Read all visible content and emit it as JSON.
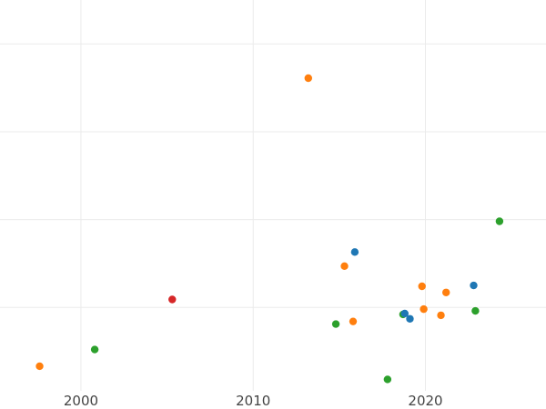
{
  "chart_data": {
    "type": "scatter",
    "title": "",
    "xlabel": "",
    "ylabel": "",
    "x_ticks": [
      2000,
      2010,
      2020
    ],
    "x_tick_labels": [
      "2000",
      "2010",
      "2020"
    ],
    "xlim": [
      1995.3,
      2027.0
    ],
    "y_gridlines": [
      1,
      2,
      3,
      4
    ],
    "ylim": [
      0.05,
      4.5
    ],
    "grid": true,
    "colors": {
      "blue": "#1f77b4",
      "orange": "#ff7f0e",
      "green": "#2ca02c",
      "red": "#d62728"
    },
    "points": [
      {
        "x": 1997.6,
        "y": 0.33,
        "color": "orange"
      },
      {
        "x": 2000.8,
        "y": 0.52,
        "color": "green"
      },
      {
        "x": 2005.3,
        "y": 1.09,
        "color": "red"
      },
      {
        "x": 2013.2,
        "y": 3.61,
        "color": "orange"
      },
      {
        "x": 2014.8,
        "y": 0.81,
        "color": "green"
      },
      {
        "x": 2015.3,
        "y": 1.47,
        "color": "orange"
      },
      {
        "x": 2015.8,
        "y": 0.84,
        "color": "orange"
      },
      {
        "x": 2015.9,
        "y": 1.63,
        "color": "blue"
      },
      {
        "x": 2017.8,
        "y": 0.18,
        "color": "green"
      },
      {
        "x": 2018.7,
        "y": 0.92,
        "color": "green"
      },
      {
        "x": 2018.8,
        "y": 0.93,
        "color": "blue"
      },
      {
        "x": 2019.1,
        "y": 0.87,
        "color": "blue"
      },
      {
        "x": 2019.8,
        "y": 1.24,
        "color": "orange"
      },
      {
        "x": 2019.9,
        "y": 0.98,
        "color": "orange"
      },
      {
        "x": 2020.9,
        "y": 0.91,
        "color": "orange"
      },
      {
        "x": 2021.2,
        "y": 1.17,
        "color": "orange"
      },
      {
        "x": 2022.8,
        "y": 1.25,
        "color": "blue"
      },
      {
        "x": 2022.9,
        "y": 0.96,
        "color": "green"
      },
      {
        "x": 2024.3,
        "y": 1.98,
        "color": "green"
      }
    ]
  }
}
